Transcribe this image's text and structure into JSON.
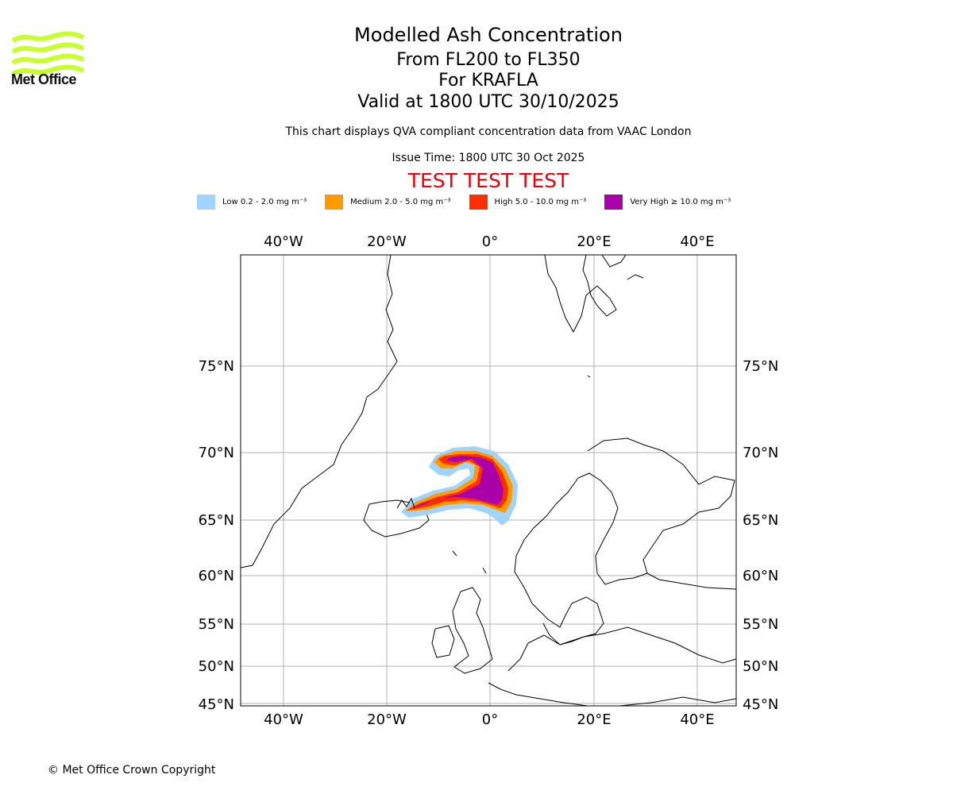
{
  "logo": {
    "text": "Met Office",
    "color": "#c8ff2e"
  },
  "title": "Modelled Ash Concentration",
  "levels": "From FL200 to FL350",
  "volcano": "For KRAFLA",
  "valid": "Valid at 1800 UTC 30/10/2025",
  "compliance_note": "This chart displays QVA compliant concentration data from VAAC London",
  "issue_time": "Issue Time: 1800 UTC 30 Oct 2025",
  "test_banner": "TEST TEST TEST",
  "legend": [
    {
      "label": "Low 0.2 - 2.0 mg m⁻³",
      "color": "#a0d4ff"
    },
    {
      "label": "Medium 2.0 - 5.0 mg m⁻³",
      "color": "#ff9a00"
    },
    {
      "label": "High 5.0 - 10.0 mg m⁻³",
      "color": "#ff2f00"
    },
    {
      "label": "Very High ≥ 10.0 mg m⁻³",
      "color": "#aa00aa"
    }
  ],
  "axes": {
    "lon_labels": [
      "40°W",
      "20°W",
      "0°",
      "20°E",
      "40°E"
    ],
    "lat_labels": [
      "75°N",
      "70°N",
      "65°N",
      "60°N",
      "55°N",
      "50°N",
      "45°N"
    ]
  },
  "copyright": "© Met Office Crown Copyright"
}
